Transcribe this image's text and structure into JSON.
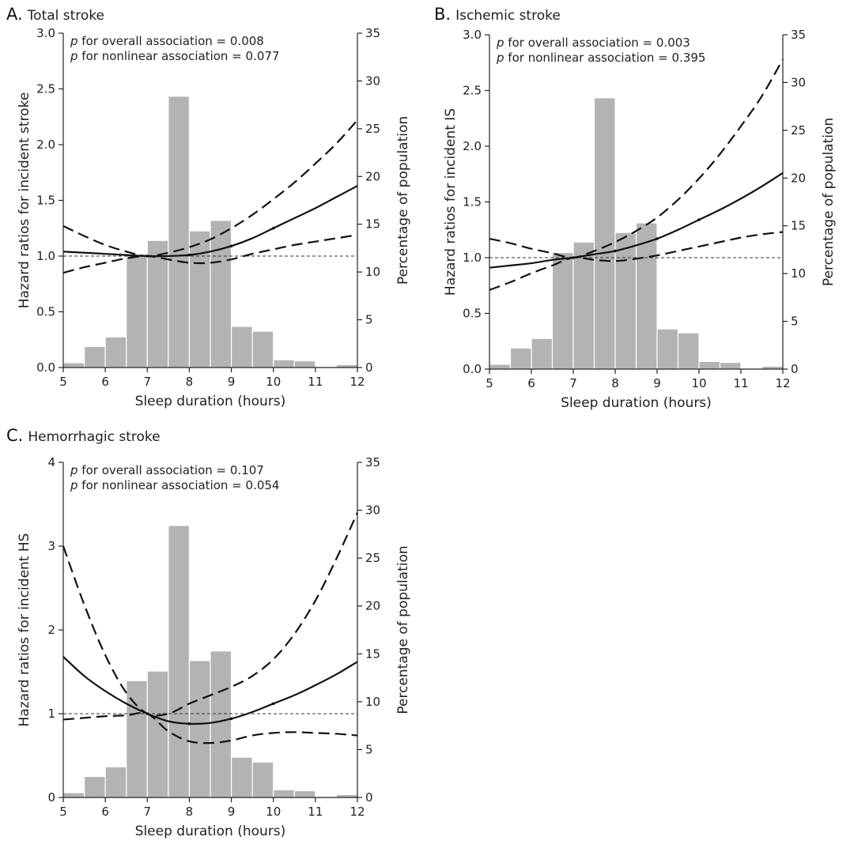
{
  "chart_data": [
    {
      "type": "bar",
      "letter": "A.",
      "title": "Total stroke",
      "annotations": [
        {
          "p": "p",
          "text": " for overall association = 0.008"
        },
        {
          "p": "p",
          "text": " for nonlinear association = 0.077"
        }
      ],
      "xlabel": "Sleep duration (hours)",
      "ylabel": "Hazard ratios for incident stroke",
      "y2label": "Percentage of population",
      "xlim": [
        5,
        12
      ],
      "ylim": [
        0,
        3.0
      ],
      "y2lim": [
        0,
        35
      ],
      "xticks": [
        "5",
        "6",
        "7",
        "8",
        "9",
        "10",
        "11",
        "12"
      ],
      "yticks": [
        "0.0",
        "0.5",
        "1.0",
        "1.5",
        "2.0",
        "2.5",
        "3.0"
      ],
      "y2ticks": [
        "0",
        "5",
        "10",
        "15",
        "20",
        "25",
        "30",
        "35"
      ],
      "reference": 1.0,
      "histogram": {
        "bin_start": [
          5.0,
          5.5,
          6.0,
          6.5,
          7.0,
          7.5,
          8.0,
          8.5,
          9.0,
          9.5,
          10.0,
          10.5,
          11.0,
          11.5
        ],
        "bin_width": 0.5,
        "percent": [
          0.5,
          2.2,
          3.2,
          11.8,
          13.3,
          28.4,
          14.3,
          15.4,
          4.3,
          3.8,
          0.8,
          0.7,
          0.0,
          0.3
        ]
      },
      "series": [
        {
          "name": "estimate",
          "x": [
            5,
            5.5,
            6,
            6.5,
            7,
            7.5,
            8,
            8.5,
            9,
            9.5,
            10,
            10.5,
            11,
            11.5,
            12
          ],
          "values": [
            1.04,
            1.03,
            1.02,
            1.01,
            1.0,
            1.0,
            1.01,
            1.04,
            1.09,
            1.16,
            1.25,
            1.34,
            1.43,
            1.53,
            1.63
          ]
        },
        {
          "name": "upper 95% CI",
          "x": [
            5,
            5.5,
            6,
            6.5,
            7,
            7.5,
            8,
            8.5,
            9,
            9.5,
            10,
            10.5,
            11,
            11.5,
            12
          ],
          "values": [
            1.27,
            1.18,
            1.1,
            1.04,
            1.0,
            1.03,
            1.08,
            1.15,
            1.25,
            1.37,
            1.51,
            1.66,
            1.83,
            2.01,
            2.22
          ]
        },
        {
          "name": "lower 95% CI",
          "x": [
            5,
            5.5,
            6,
            6.5,
            7,
            7.5,
            8,
            8.5,
            9,
            9.5,
            10,
            10.5,
            11,
            11.5,
            12
          ],
          "values": [
            0.85,
            0.9,
            0.94,
            0.98,
            1.0,
            0.97,
            0.94,
            0.94,
            0.97,
            1.02,
            1.06,
            1.1,
            1.13,
            1.16,
            1.19
          ]
        }
      ]
    },
    {
      "type": "bar",
      "letter": "B.",
      "title": "Ischemic stroke",
      "annotations": [
        {
          "p": "p",
          "text": " for overall association = 0.003"
        },
        {
          "p": "p",
          "text": " for nonlinear association = 0.395"
        }
      ],
      "xlabel": "Sleep duration (hours)",
      "ylabel": "Hazard ratios for incident IS",
      "y2label": "Percentage of population",
      "xlim": [
        5,
        12
      ],
      "ylim": [
        0,
        3.0
      ],
      "y2lim": [
        0,
        35
      ],
      "xticks": [
        "5",
        "6",
        "7",
        "8",
        "9",
        "10",
        "11",
        "12"
      ],
      "yticks": [
        "0.0",
        "0.5",
        "1.0",
        "1.5",
        "2.0",
        "2.5",
        "3.0"
      ],
      "y2ticks": [
        "0",
        "5",
        "10",
        "15",
        "20",
        "25",
        "30",
        "35"
      ],
      "reference": 1.0,
      "histogram": {
        "bin_start": [
          5.0,
          5.5,
          6.0,
          6.5,
          7.0,
          7.5,
          8.0,
          8.5,
          9.0,
          9.5,
          10.0,
          10.5,
          11.0,
          11.5
        ],
        "bin_width": 0.5,
        "percent": [
          0.5,
          2.2,
          3.2,
          12.2,
          13.3,
          28.4,
          14.3,
          15.3,
          4.2,
          3.8,
          0.8,
          0.7,
          0.0,
          0.3
        ]
      },
      "series": [
        {
          "name": "estimate",
          "x": [
            5,
            5.5,
            6,
            6.5,
            7,
            7.5,
            8,
            8.5,
            9,
            9.5,
            10,
            10.5,
            11,
            11.5,
            12
          ],
          "values": [
            0.91,
            0.93,
            0.95,
            0.98,
            1.0,
            1.03,
            1.06,
            1.11,
            1.17,
            1.25,
            1.34,
            1.43,
            1.53,
            1.64,
            1.76
          ]
        },
        {
          "name": "upper 95% CI",
          "x": [
            5,
            5.5,
            6,
            6.5,
            7,
            7.5,
            8,
            8.5,
            9,
            9.5,
            10,
            10.5,
            11,
            11.5,
            12
          ],
          "values": [
            1.17,
            1.13,
            1.08,
            1.04,
            1.0,
            1.06,
            1.14,
            1.24,
            1.36,
            1.52,
            1.71,
            1.93,
            2.18,
            2.45,
            2.78
          ]
        },
        {
          "name": "lower 95% CI",
          "x": [
            5,
            5.5,
            6,
            6.5,
            7,
            7.5,
            8,
            8.5,
            9,
            9.5,
            10,
            10.5,
            11,
            11.5,
            12
          ],
          "values": [
            0.71,
            0.78,
            0.86,
            0.93,
            1.0,
            0.98,
            0.97,
            0.99,
            1.02,
            1.06,
            1.1,
            1.14,
            1.18,
            1.21,
            1.23
          ]
        }
      ]
    },
    {
      "type": "bar",
      "letter": "C.",
      "title": "Hemorrhagic stroke",
      "annotations": [
        {
          "p": "p",
          "text": " for overall association = 0.107"
        },
        {
          "p": "p",
          "text": " for nonlinear association = 0.054"
        }
      ],
      "xlabel": "Sleep duration (hours)",
      "ylabel": "Hazard ratios for incident HS",
      "y2label": "Percentage of population",
      "xlim": [
        5,
        12
      ],
      "ylim": [
        0,
        4
      ],
      "y2lim": [
        0,
        35
      ],
      "xticks": [
        "5",
        "6",
        "7",
        "8",
        "9",
        "10",
        "11",
        "12"
      ],
      "yticks": [
        "0",
        "1",
        "2",
        "3",
        "4"
      ],
      "y2ticks": [
        "0",
        "5",
        "10",
        "15",
        "20",
        "25",
        "30",
        "35"
      ],
      "reference": 1.0,
      "histogram": {
        "bin_start": [
          5.0,
          5.5,
          6.0,
          6.5,
          7.0,
          7.5,
          8.0,
          8.5,
          9.0,
          9.5,
          10.0,
          10.5,
          11.0,
          11.5
        ],
        "bin_width": 0.5,
        "percent": [
          0.5,
          2.2,
          3.2,
          12.2,
          13.2,
          28.4,
          14.3,
          15.3,
          4.2,
          3.7,
          0.8,
          0.7,
          0.0,
          0.3
        ]
      },
      "series": [
        {
          "name": "estimate",
          "x": [
            5,
            5.5,
            6,
            6.5,
            7,
            7.5,
            8,
            8.5,
            9,
            9.5,
            10,
            10.5,
            11,
            11.5,
            12
          ],
          "values": [
            1.68,
            1.45,
            1.27,
            1.12,
            1.0,
            0.91,
            0.88,
            0.89,
            0.94,
            1.02,
            1.12,
            1.22,
            1.34,
            1.47,
            1.62
          ]
        },
        {
          "name": "upper 95% CI",
          "x": [
            5,
            5.5,
            6,
            6.5,
            7,
            7.5,
            8,
            8.5,
            9,
            9.5,
            10,
            10.5,
            11,
            11.5,
            12
          ],
          "values": [
            3.0,
            2.3,
            1.7,
            1.25,
            1.0,
            1.0,
            1.12,
            1.22,
            1.32,
            1.45,
            1.65,
            1.95,
            2.35,
            2.85,
            3.4
          ]
        },
        {
          "name": "lower 95% CI",
          "x": [
            5,
            5.5,
            6,
            6.5,
            7,
            7.5,
            8,
            8.5,
            9,
            9.5,
            10,
            10.5,
            11,
            11.5,
            12
          ],
          "values": [
            0.93,
            0.95,
            0.97,
            0.98,
            1.0,
            0.79,
            0.67,
            0.65,
            0.68,
            0.74,
            0.77,
            0.78,
            0.77,
            0.76,
            0.74
          ]
        }
      ]
    }
  ]
}
